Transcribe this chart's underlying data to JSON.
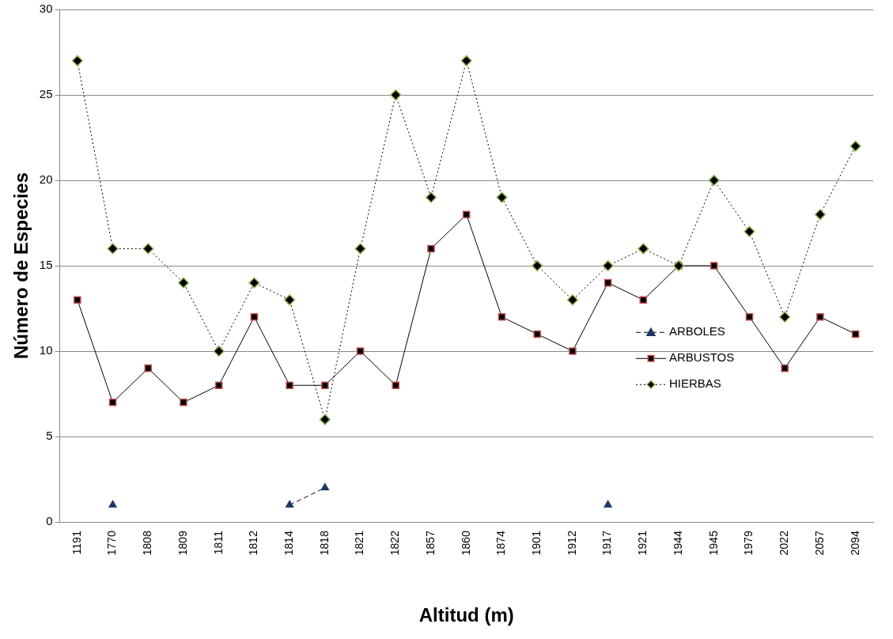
{
  "chart_data": {
    "type": "line",
    "xlabel": "Altitud (m)",
    "ylabel": "Número de Especies",
    "categories": [
      "1191",
      "1770",
      "1808",
      "1809",
      "1811",
      "1812",
      "1814",
      "1818",
      "1821",
      "1822",
      "1857",
      "1860",
      "1874",
      "1901",
      "1912",
      "1917",
      "1921",
      "1944",
      "1945",
      "1979",
      "2022",
      "2057",
      "2094"
    ],
    "series": [
      {
        "name": "ARBOLES",
        "color": "#1f3864",
        "line_style": "dashed",
        "marker": "triangle",
        "values": [
          null,
          1,
          null,
          null,
          null,
          null,
          1,
          2,
          null,
          null,
          null,
          null,
          null,
          null,
          null,
          1,
          null,
          null,
          null,
          null,
          null,
          null,
          null
        ]
      },
      {
        "name": "ARBUSTOS",
        "color": "#c0504d",
        "line_style": "solid",
        "marker": "square",
        "values": [
          13,
          7,
          9,
          7,
          8,
          12,
          8,
          8,
          10,
          8,
          16,
          18,
          12,
          11,
          10,
          14,
          13,
          15,
          15,
          12,
          9,
          12,
          11
        ]
      },
      {
        "name": "HIERBAS",
        "color": "#9bbb59",
        "line_style": "dotted",
        "marker": "diamond",
        "values": [
          27,
          16,
          16,
          14,
          10,
          14,
          13,
          6,
          16,
          25,
          19,
          27,
          19,
          15,
          13,
          15,
          16,
          15,
          20,
          17,
          12,
          18,
          22
        ]
      }
    ],
    "ylim": [
      0,
      30
    ],
    "yticks": [
      0,
      5,
      10,
      15,
      20,
      25,
      30
    ],
    "grid": "y",
    "legend": "right"
  }
}
